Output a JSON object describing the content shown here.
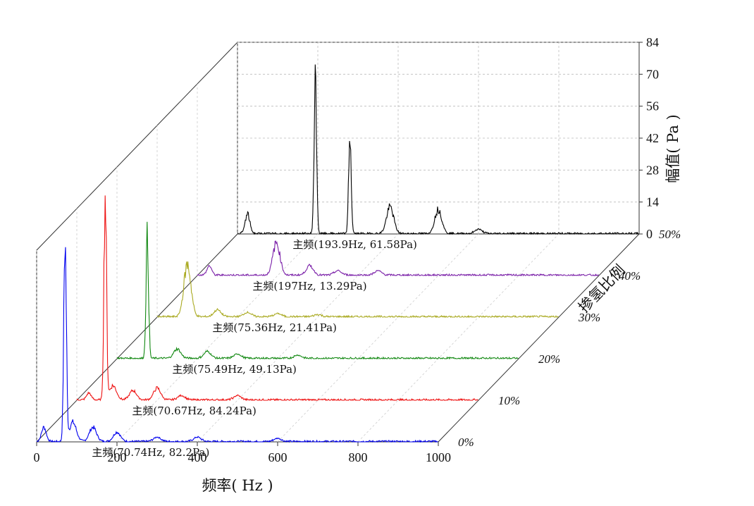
{
  "chart_data": {
    "type": "line",
    "subtype": "3d-waterfall-spectrum",
    "xlabel": "频率( Hz )",
    "ylabel": "幅值( Pa )",
    "zlabel": "掺氢比例",
    "x_ticks": [
      "0",
      "200",
      "400",
      "600",
      "800",
      "1000"
    ],
    "xlim": [
      0,
      1000
    ],
    "y_ticks": [
      "0",
      "14",
      "28",
      "42",
      "56",
      "70",
      "84"
    ],
    "ylim": [
      0,
      84
    ],
    "z_ticks": [
      "0%",
      "10%",
      "20%",
      "30%",
      "40%",
      "50%"
    ],
    "grid": true,
    "series": [
      {
        "name": "0%",
        "color": "#0000ee",
        "annotation": "主频(70.74Hz, 82.2Pa)",
        "peaks": [
          [
            18,
            6
          ],
          [
            70.74,
            82.2
          ],
          [
            90,
            8
          ],
          [
            140,
            6
          ],
          [
            200,
            4
          ],
          [
            300,
            2
          ],
          [
            400,
            2
          ],
          [
            600,
            1.5
          ]
        ]
      },
      {
        "name": "10%",
        "color": "#ee1111",
        "annotation": "主频(70.67Hz, 84.24Pa)",
        "peaks": [
          [
            30,
            3
          ],
          [
            70.67,
            84.24
          ],
          [
            90,
            6
          ],
          [
            140,
            4
          ],
          [
            200,
            5
          ],
          [
            260,
            2
          ],
          [
            400,
            2
          ]
        ]
      },
      {
        "name": "20%",
        "color": "#118811",
        "annotation": "主频(75.49Hz, 49.13Pa)",
        "peaks": [
          [
            75.49,
            49.13
          ],
          [
            150,
            4
          ],
          [
            225,
            3
          ],
          [
            300,
            2
          ],
          [
            450,
            1.5
          ]
        ]
      },
      {
        "name": "30%",
        "color": "#aaaa22",
        "annotation": "主频(75.36Hz, 21.41Pa)",
        "peaks": [
          [
            75.36,
            21.41
          ],
          [
            150,
            3
          ],
          [
            225,
            2
          ],
          [
            300,
            1.5
          ],
          [
            400,
            1
          ]
        ]
      },
      {
        "name": "40%",
        "color": "#7a1fa8",
        "annotation": "主频(197Hz, 13.29Pa)",
        "peaks": [
          [
            30,
            4
          ],
          [
            197,
            13.29
          ],
          [
            280,
            4
          ],
          [
            350,
            2
          ],
          [
            450,
            2
          ]
        ]
      },
      {
        "name": "50%",
        "color": "#000000",
        "annotation": "主频(193.9Hz, 61.58Pa)",
        "peaks": [
          [
            25,
            8
          ],
          [
            193.9,
            61.58
          ],
          [
            280,
            40
          ],
          [
            380,
            11
          ],
          [
            500,
            10
          ],
          [
            600,
            2
          ]
        ]
      }
    ]
  }
}
